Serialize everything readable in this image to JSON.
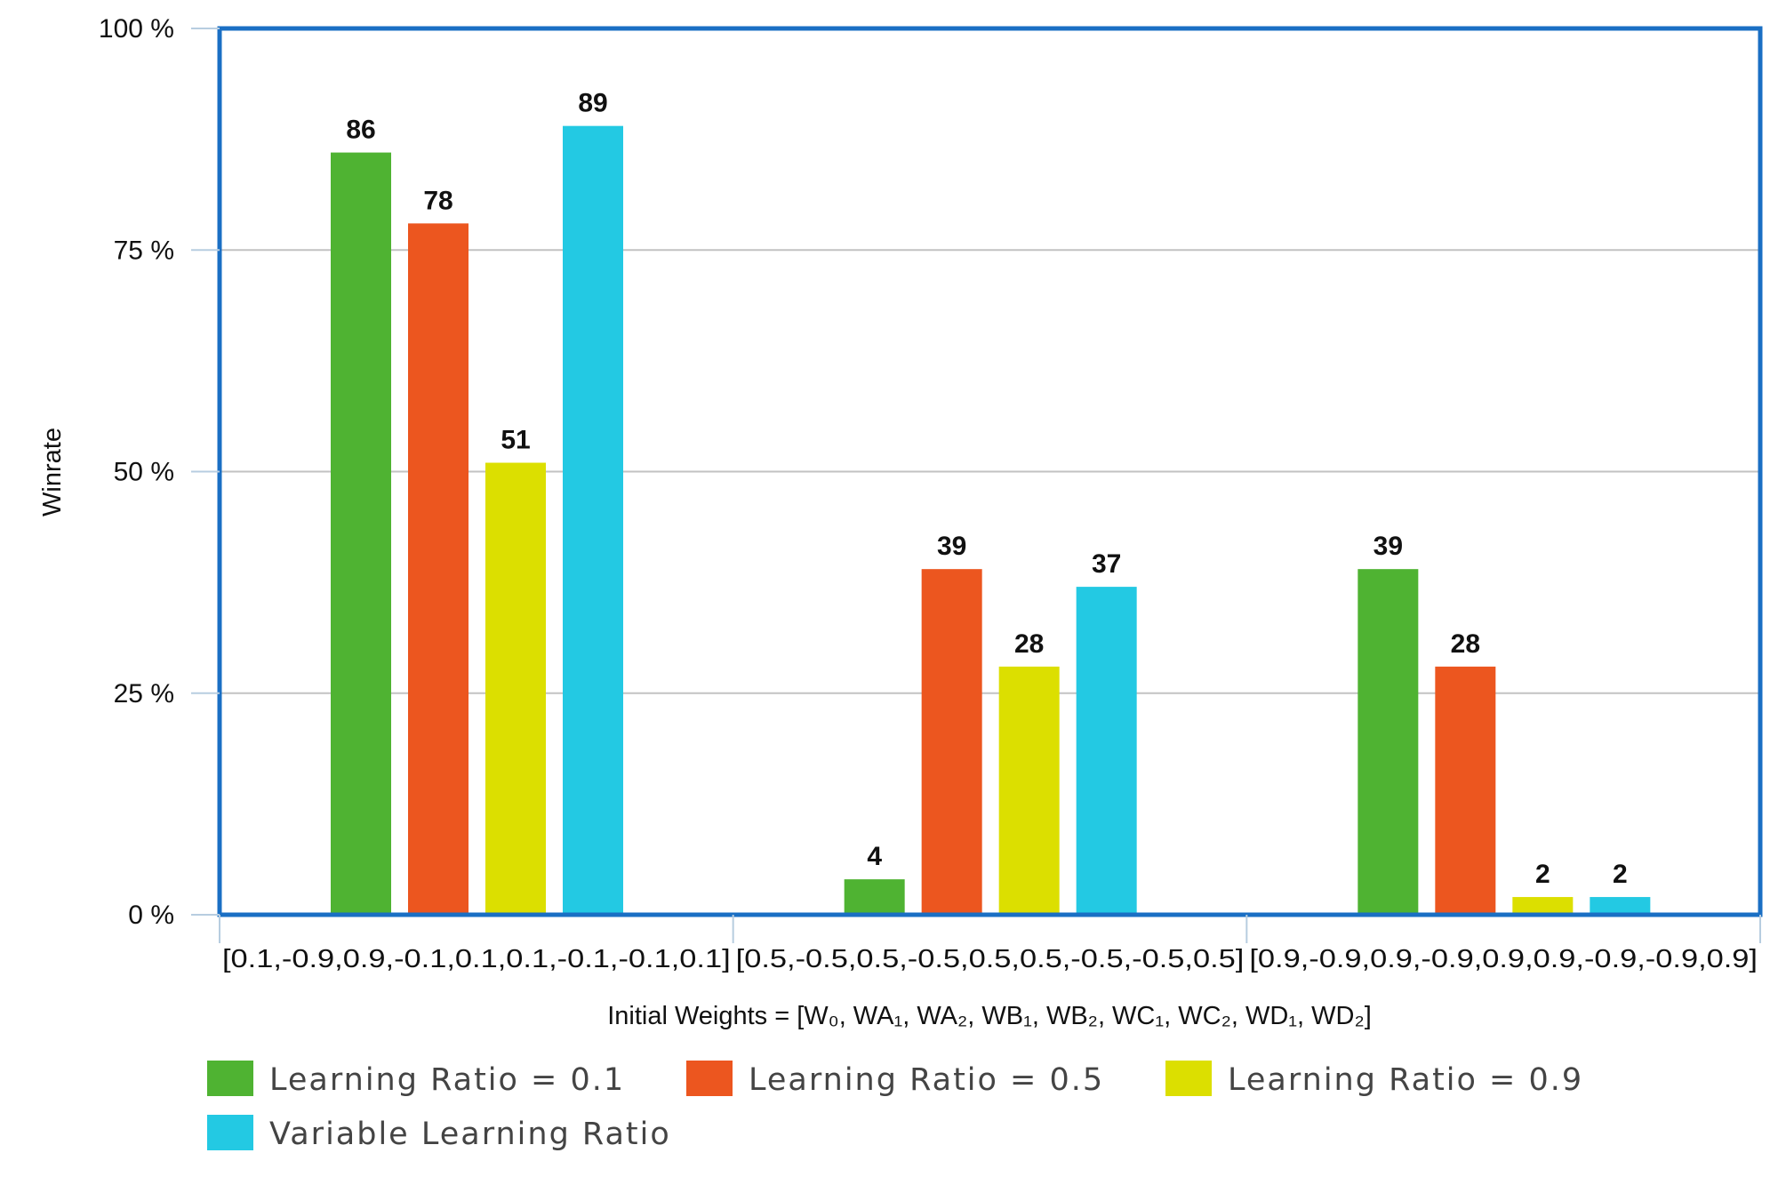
{
  "chart_data": {
    "type": "bar",
    "title": "",
    "xlabel": "Initial Weights = [W₀, WA₁, WA₂, WB₁, WB₂, WC₁, WC₂, WD₁, WD₂]",
    "ylabel": "Winrate",
    "ylim": [
      0,
      100
    ],
    "yticks": [
      "0 %",
      "25 %",
      "50 %",
      "75 %",
      "100 %"
    ],
    "grid": true,
    "legend_position": "bottom",
    "categories": [
      "[0.1,-0.9,0.9,-0.1,0.1,0.1,-0.1,-0.1,0.1]",
      "[0.5,-0.5,0.5,-0.5,0.5,0.5,-0.5,-0.5,0.5]",
      "[0.9,-0.9,0.9,-0.9,0.9,0.9,-0.9,-0.9,0.9]"
    ],
    "series": [
      {
        "name": "Learning Ratio = 0.1",
        "color": "#4fb332",
        "values": [
          86,
          4,
          39
        ]
      },
      {
        "name": "Learning Ratio = 0.5",
        "color": "#ec561f",
        "values": [
          78,
          39,
          28
        ]
      },
      {
        "name": "Learning Ratio = 0.9",
        "color": "#dcdf00",
        "values": [
          51,
          28,
          2
        ]
      },
      {
        "name": "Variable Learning Ratio",
        "color": "#23c9e3",
        "values": [
          89,
          37,
          2
        ]
      }
    ]
  }
}
